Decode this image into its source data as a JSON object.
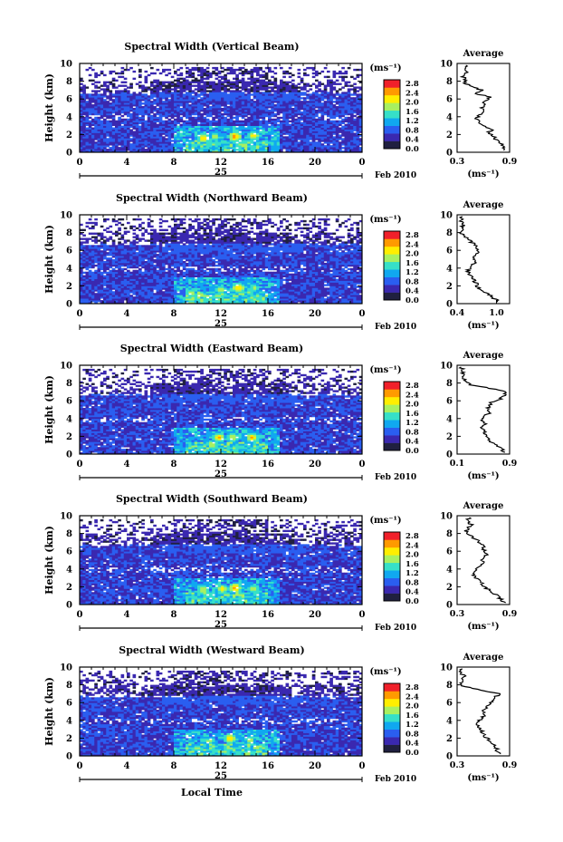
{
  "figure": {
    "xlabel": "Local Time",
    "day_label": "25",
    "date_label": "Feb 2010",
    "ylabel": "Height (km)",
    "avg_title": "Average",
    "avg_xlabel": "(ms⁻¹)",
    "colorbar": {
      "unit": "(ms⁻¹)",
      "ticks": [
        "2.8",
        "2.4",
        "2.0",
        "1.6",
        "1.2",
        "0.8",
        "0.4",
        "0.0"
      ],
      "colors": [
        "#f0202a",
        "#ff9a00",
        "#ffee00",
        "#a8f060",
        "#36e0c8",
        "#10a8f0",
        "#2a5ef0",
        "#3a28b0",
        "#202040"
      ]
    }
  },
  "chart_data": [
    {
      "type": "heatmap",
      "title": "Spectral Width (Vertical Beam)",
      "x_ticks": [
        "0",
        "4",
        "8",
        "12",
        "16",
        "20",
        "0"
      ],
      "y_ticks": [
        "0",
        "2",
        "4",
        "6",
        "8",
        "10"
      ],
      "xlim": [
        0,
        24
      ],
      "ylim": [
        0,
        10
      ],
      "clim": [
        0.0,
        3.0
      ],
      "description_values": {
        "background": 0.6,
        "upper_layer": 0.4,
        "peaks": [
          [
            10.5,
            1.6,
            2.4
          ],
          [
            11.5,
            1.8,
            2.0
          ],
          [
            13.2,
            1.8,
            2.8
          ],
          [
            14.8,
            1.9,
            2.4
          ]
        ]
      },
      "avg": {
        "xlim": [
          0.3,
          0.9
        ],
        "x_ticks": [
          "0.3",
          "0.9"
        ],
        "heights": [
          0.2,
          0.6,
          1.0,
          1.4,
          1.8,
          2.2,
          2.6,
          3.0,
          3.4,
          3.8,
          4.2,
          4.6,
          5.0,
          5.4,
          5.8,
          6.2,
          6.6,
          7.0,
          7.4,
          7.8,
          8.2,
          8.6,
          9.0,
          9.4,
          9.8
        ],
        "values": [
          0.86,
          0.82,
          0.8,
          0.74,
          0.72,
          0.66,
          0.7,
          0.6,
          0.56,
          0.52,
          0.56,
          0.62,
          0.58,
          0.6,
          0.62,
          0.68,
          0.52,
          0.58,
          0.46,
          0.38,
          0.4,
          0.36,
          0.42,
          0.38,
          0.4
        ]
      }
    },
    {
      "type": "heatmap",
      "title": "Spectral Width (Northward Beam)",
      "x_ticks": [
        "0",
        "4",
        "8",
        "12",
        "16",
        "20",
        "0"
      ],
      "y_ticks": [
        "0",
        "2",
        "4",
        "6",
        "8",
        "10"
      ],
      "xlim": [
        0,
        24
      ],
      "ylim": [
        0,
        10
      ],
      "clim": [
        0.0,
        3.0
      ],
      "description_values": {
        "background": 0.6,
        "upper_layer": 0.4,
        "peaks": [
          [
            9.5,
            1.2,
            2.0
          ],
          [
            12.0,
            1.6,
            2.2
          ],
          [
            13.5,
            1.8,
            2.6
          ],
          [
            14.8,
            1.8,
            2.0
          ]
        ]
      },
      "avg": {
        "xlim": [
          0.4,
          1.2
        ],
        "x_ticks": [
          "0.4",
          "1.0"
        ],
        "heights": [
          0.2,
          0.6,
          1.0,
          1.4,
          1.8,
          2.2,
          2.6,
          3.0,
          3.4,
          3.8,
          4.2,
          4.6,
          5.0,
          5.4,
          5.8,
          6.2,
          6.6,
          7.0,
          7.4,
          7.8,
          8.2,
          8.6,
          9.0,
          9.4,
          9.8
        ],
        "values": [
          1.05,
          0.96,
          0.9,
          0.78,
          0.72,
          0.7,
          0.66,
          0.62,
          0.58,
          0.56,
          0.62,
          0.66,
          0.64,
          0.68,
          0.7,
          0.72,
          0.68,
          0.6,
          0.54,
          0.48,
          0.46,
          0.48,
          0.5,
          0.46,
          0.48
        ]
      }
    },
    {
      "type": "heatmap",
      "title": "Spectral Width (Eastward Beam)",
      "x_ticks": [
        "0",
        "4",
        "8",
        "12",
        "16",
        "20",
        "0"
      ],
      "y_ticks": [
        "0",
        "2",
        "4",
        "6",
        "8",
        "10"
      ],
      "xlim": [
        0,
        24
      ],
      "ylim": [
        0,
        10
      ],
      "clim": [
        0.0,
        3.0
      ],
      "description_values": {
        "background": 0.6,
        "upper_layer": 0.4,
        "peaks": [
          [
            11.8,
            1.9,
            2.6
          ],
          [
            13.0,
            1.9,
            2.2
          ],
          [
            14.7,
            1.9,
            2.6
          ]
        ]
      },
      "avg": {
        "xlim": [
          0.1,
          0.9
        ],
        "x_ticks": [
          "0.1",
          "0.9"
        ],
        "heights": [
          0.2,
          0.6,
          1.0,
          1.4,
          1.8,
          2.2,
          2.6,
          3.0,
          3.4,
          3.8,
          4.2,
          4.6,
          5.0,
          5.4,
          5.8,
          6.2,
          6.6,
          7.0,
          7.4,
          7.8,
          8.2,
          8.6,
          9.0,
          9.4,
          9.8
        ],
        "values": [
          0.82,
          0.78,
          0.72,
          0.62,
          0.56,
          0.54,
          0.5,
          0.48,
          0.52,
          0.46,
          0.5,
          0.58,
          0.56,
          0.6,
          0.62,
          0.76,
          0.82,
          0.86,
          0.6,
          0.3,
          0.22,
          0.2,
          0.18,
          0.2,
          0.16
        ]
      }
    },
    {
      "type": "heatmap",
      "title": "Spectral Width (Southward Beam)",
      "x_ticks": [
        "0",
        "4",
        "8",
        "12",
        "16",
        "20",
        "0"
      ],
      "y_ticks": [
        "0",
        "2",
        "4",
        "6",
        "8",
        "10"
      ],
      "xlim": [
        0,
        24
      ],
      "ylim": [
        0,
        10
      ],
      "clim": [
        0.0,
        3.0
      ],
      "description_values": {
        "background": 0.6,
        "upper_layer": 0.4,
        "peaks": [
          [
            10.5,
            1.7,
            2.2
          ],
          [
            12.2,
            1.8,
            2.4
          ],
          [
            13.2,
            1.9,
            2.8
          ],
          [
            14.8,
            1.8,
            2.2
          ]
        ]
      },
      "avg": {
        "xlim": [
          0.3,
          0.9
        ],
        "x_ticks": [
          "0.3",
          "0.9"
        ],
        "heights": [
          0.2,
          0.6,
          1.0,
          1.4,
          1.8,
          2.2,
          2.6,
          3.0,
          3.4,
          3.8,
          4.2,
          4.6,
          5.0,
          5.4,
          5.8,
          6.2,
          6.6,
          7.0,
          7.4,
          7.8,
          8.2,
          8.6,
          9.0,
          9.4,
          9.8
        ],
        "values": [
          0.84,
          0.8,
          0.76,
          0.7,
          0.64,
          0.6,
          0.58,
          0.52,
          0.48,
          0.5,
          0.56,
          0.6,
          0.58,
          0.62,
          0.64,
          0.6,
          0.62,
          0.56,
          0.5,
          0.44,
          0.4,
          0.42,
          0.46,
          0.42,
          0.44
        ]
      }
    },
    {
      "type": "heatmap",
      "title": "Spectral Width (Westward Beam)",
      "x_ticks": [
        "0",
        "4",
        "8",
        "12",
        "16",
        "20",
        "0"
      ],
      "y_ticks": [
        "0",
        "2",
        "4",
        "6",
        "8",
        "10"
      ],
      "xlim": [
        0,
        24
      ],
      "ylim": [
        0,
        10
      ],
      "clim": [
        0.0,
        3.0
      ],
      "description_values": {
        "background": 0.6,
        "upper_layer": 0.4,
        "peaks": [
          [
            11.0,
            1.7,
            2.0
          ],
          [
            12.8,
            2.0,
            2.6
          ],
          [
            14.5,
            1.8,
            2.0
          ]
        ]
      },
      "avg": {
        "xlim": [
          0.3,
          0.9
        ],
        "x_ticks": [
          "0.3",
          "0.9"
        ],
        "heights": [
          0.2,
          0.6,
          1.0,
          1.4,
          1.8,
          2.2,
          2.6,
          3.0,
          3.4,
          3.8,
          4.2,
          4.6,
          5.0,
          5.4,
          5.8,
          6.2,
          6.6,
          7.0,
          7.4,
          7.8,
          8.2,
          8.6,
          9.0,
          9.4,
          9.8
        ],
        "values": [
          0.8,
          0.76,
          0.74,
          0.7,
          0.66,
          0.62,
          0.6,
          0.56,
          0.54,
          0.52,
          0.58,
          0.62,
          0.6,
          0.64,
          0.66,
          0.72,
          0.74,
          0.78,
          0.58,
          0.38,
          0.34,
          0.36,
          0.38,
          0.34,
          0.36
        ]
      }
    }
  ]
}
